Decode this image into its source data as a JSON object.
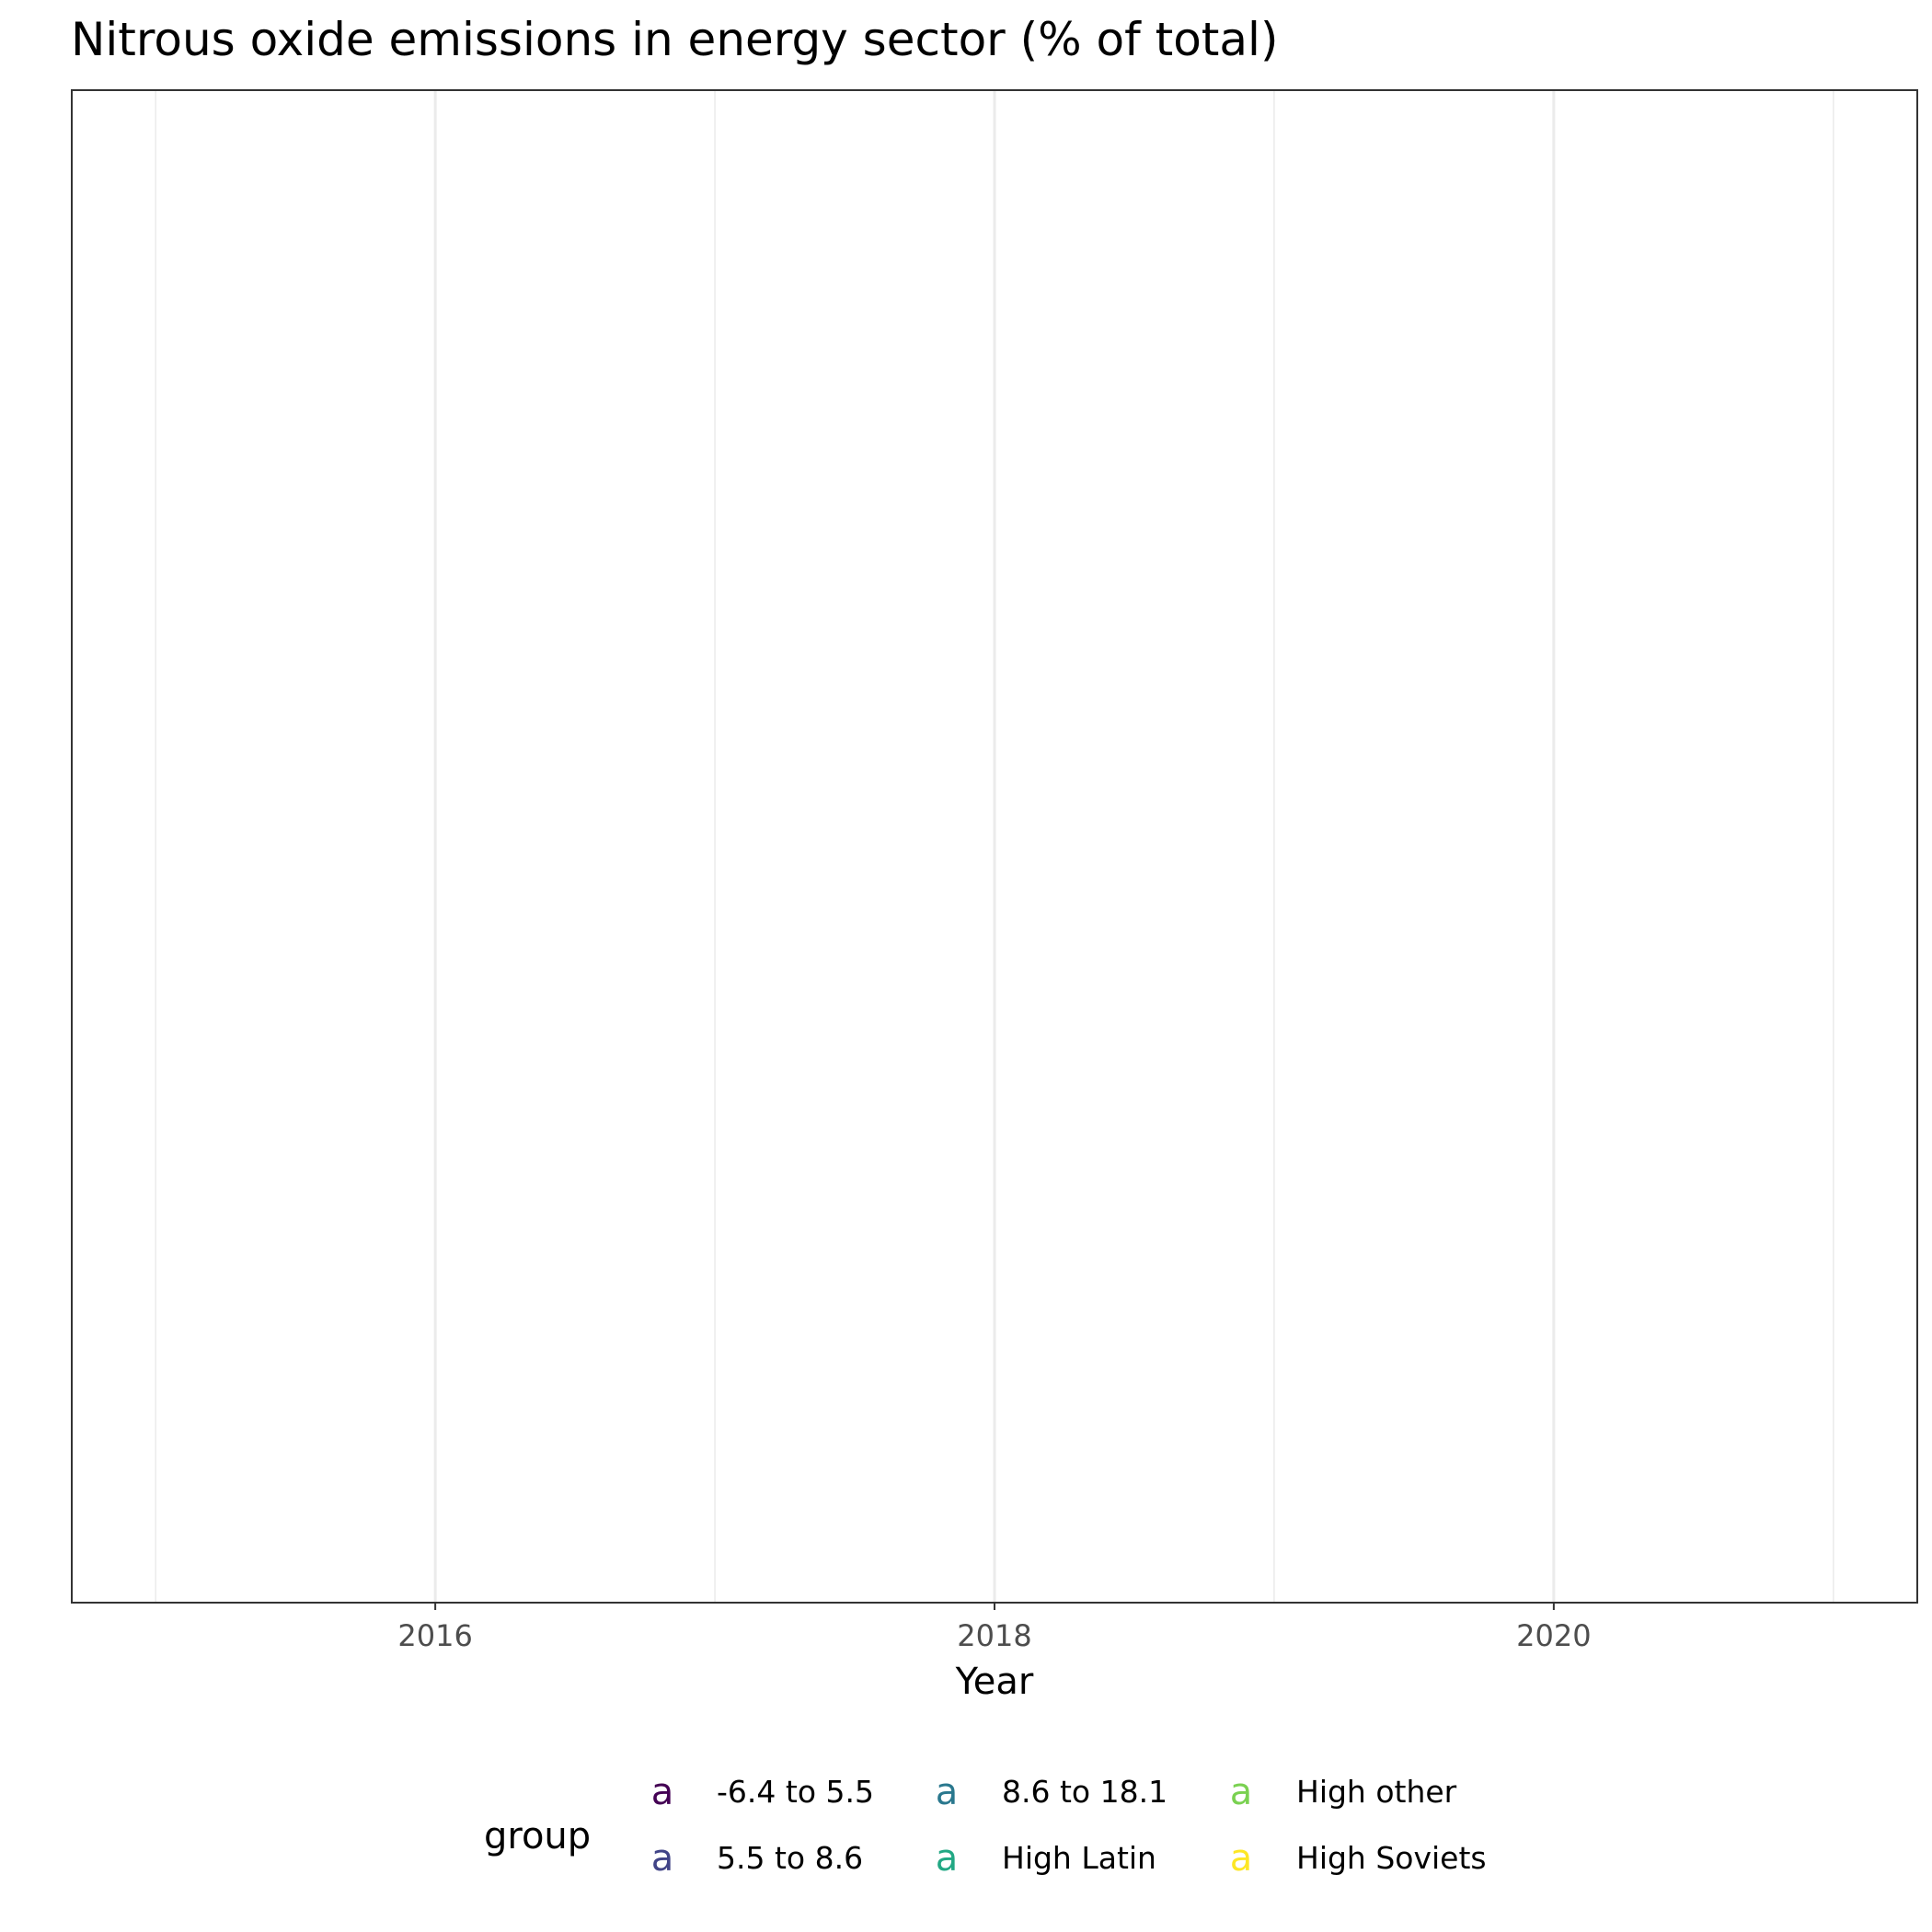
{
  "chart_data": {
    "type": "scatter",
    "title": "Nitrous oxide emissions in energy sector (% of total)",
    "xlabel": "Year",
    "ylabel": "",
    "xlim": [
      2014.7,
      2021.3
    ],
    "x_ticks": [
      2016,
      2018,
      2020
    ],
    "x_tick_labels": [
      "2016",
      "2018",
      "2020"
    ],
    "x_minor_gridlines": [
      2015,
      2017,
      2019,
      2021
    ],
    "grid": true,
    "legend": {
      "title": "group",
      "position": "bottom",
      "key_glyph": "a",
      "entries": [
        {
          "label": "-6.4 to 5.5",
          "color": "#440154"
        },
        {
          "label": "5.5 to 8.6",
          "color": "#414487"
        },
        {
          "label": "8.6 to 18.1",
          "color": "#2A788E"
        },
        {
          "label": "High Latin",
          "color": "#22A884"
        },
        {
          "label": "High other",
          "color": "#7AD151"
        },
        {
          "label": "High Soviets",
          "color": "#FDE725"
        }
      ]
    },
    "series": []
  }
}
